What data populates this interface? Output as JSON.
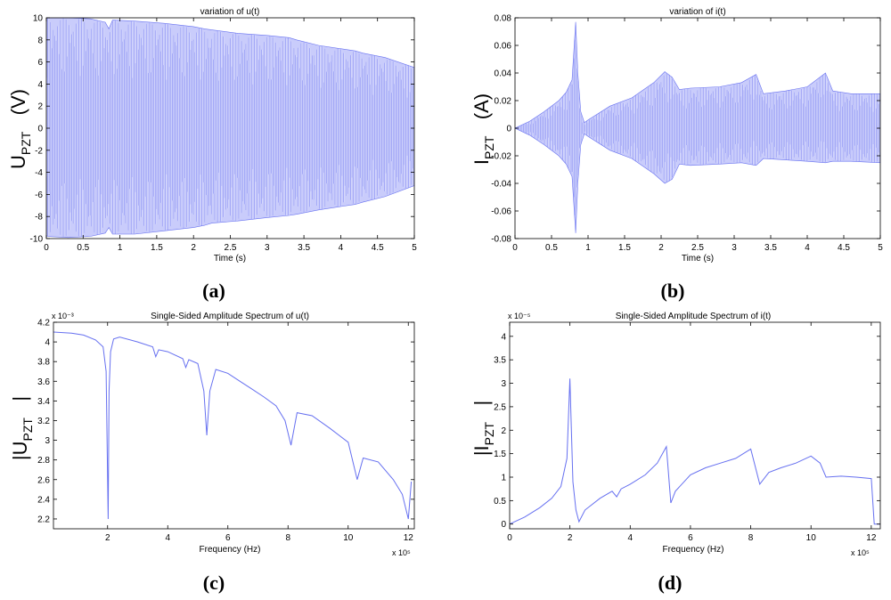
{
  "panels": [
    {
      "panel_label": "(a)",
      "title": "variation of u(t)",
      "xlabel": "Time (s)",
      "ylabel_main": "U",
      "ylabel_sub": "PZT",
      "ylabel_unit": "(V)",
      "x_multiplier": "",
      "y_multiplier": "",
      "xticks": [
        "0",
        "0.5",
        "1",
        "1.5",
        "2",
        "2.5",
        "3",
        "3.5",
        "4",
        "4.5",
        "5"
      ],
      "yticks": [
        "-10",
        "-8",
        "-6",
        "-4",
        "-2",
        "0",
        "2",
        "4",
        "6",
        "8",
        "10"
      ]
    },
    {
      "panel_label": "(b)",
      "title": "variation of i(t)",
      "xlabel": "Time (s)",
      "ylabel_main": "I",
      "ylabel_sub": "PZT",
      "ylabel_unit": "(A)",
      "x_multiplier": "",
      "y_multiplier": "",
      "xticks": [
        "0",
        "0.5",
        "1",
        "1.5",
        "2",
        "2.5",
        "3",
        "3.5",
        "4",
        "4.5",
        "5"
      ],
      "yticks": [
        "-0.08",
        "-0.06",
        "-0.04",
        "-0.02",
        "0",
        "0.02",
        "0.04",
        "0.06",
        "0.08"
      ]
    },
    {
      "panel_label": "(c)",
      "title": "Single-Sided Amplitude Spectrum of u(t)",
      "xlabel": "Frequency (Hz)",
      "ylabel_main": "|U",
      "ylabel_sub": "PZT",
      "ylabel_unit": "|",
      "x_multiplier": "x 10⁵",
      "y_multiplier": "x 10⁻³",
      "xticks": [
        "2",
        "4",
        "6",
        "8",
        "10",
        "12"
      ],
      "yticks": [
        "2.2",
        "2.4",
        "2.6",
        "2.8",
        "3",
        "3.2",
        "3.4",
        "3.6",
        "3.8",
        "4",
        "4.2"
      ]
    },
    {
      "panel_label": "(d)",
      "title": "Single-Sided Amplitude Spectrum of i(t)",
      "xlabel": "Frequency (Hz)",
      "ylabel_main": "|I",
      "ylabel_sub": "PZT",
      "ylabel_unit": "|",
      "x_multiplier": "x 10⁵",
      "y_multiplier": "x 10⁻⁵",
      "xticks": [
        "0",
        "2",
        "4",
        "6",
        "8",
        "10",
        "12"
      ],
      "yticks": [
        "0",
        "0.5",
        "1",
        "1.5",
        "2",
        "2.5",
        "3",
        "3.5",
        "4"
      ]
    }
  ],
  "colors": {
    "trace": "#6670f0",
    "fill": "#c9ccfb",
    "axis": "#000000"
  },
  "chart_data": [
    {
      "type": "area",
      "title": "variation of u(t)",
      "xlabel": "Time (s)",
      "ylabel": "U_PZT (V)",
      "xlim": [
        0,
        5
      ],
      "ylim": [
        -10,
        10
      ],
      "grid": false,
      "description_type": "envelope",
      "x": [
        0,
        0.3,
        0.6,
        0.8,
        0.85,
        0.9,
        1.2,
        1.6,
        2.0,
        2.15,
        2.25,
        2.6,
        3.0,
        3.3,
        3.4,
        3.7,
        4.0,
        4.2,
        4.3,
        4.6,
        5.0
      ],
      "upper": [
        10,
        10,
        9.9,
        9.6,
        9.0,
        9.8,
        9.7,
        9.5,
        9.2,
        9.0,
        8.9,
        8.6,
        8.4,
        8.2,
        8.0,
        7.5,
        7.2,
        7.0,
        6.8,
        6.4,
        5.5
      ],
      "lower": [
        -9.8,
        -9.9,
        -9.8,
        -9.5,
        -9.0,
        -9.6,
        -9.6,
        -9.3,
        -9.0,
        -8.8,
        -8.6,
        -8.4,
        -8.1,
        -7.9,
        -7.8,
        -7.4,
        -7.1,
        -6.9,
        -6.7,
        -6.2,
        -5.2
      ]
    },
    {
      "type": "area",
      "title": "variation of i(t)",
      "xlabel": "Time (s)",
      "ylabel": "I_PZT (A)",
      "xlim": [
        0,
        5
      ],
      "ylim": [
        -0.08,
        0.08
      ],
      "grid": false,
      "description_type": "envelope",
      "x": [
        0,
        0.2,
        0.4,
        0.6,
        0.7,
        0.78,
        0.83,
        0.86,
        0.9,
        0.95,
        1.0,
        1.3,
        1.6,
        1.9,
        2.05,
        2.15,
        2.25,
        2.4,
        2.8,
        3.1,
        3.3,
        3.4,
        3.7,
        4.0,
        4.25,
        4.35,
        4.6,
        5.0
      ],
      "upper": [
        0.0,
        0.005,
        0.012,
        0.02,
        0.026,
        0.035,
        0.077,
        0.04,
        0.012,
        0.004,
        0.006,
        0.016,
        0.022,
        0.033,
        0.041,
        0.037,
        0.028,
        0.029,
        0.03,
        0.033,
        0.039,
        0.025,
        0.027,
        0.03,
        0.04,
        0.027,
        0.025,
        0.025
      ],
      "lower": [
        0.0,
        -0.005,
        -0.012,
        -0.02,
        -0.026,
        -0.035,
        -0.076,
        -0.04,
        -0.012,
        -0.004,
        -0.006,
        -0.016,
        -0.022,
        -0.033,
        -0.04,
        -0.037,
        -0.026,
        -0.027,
        -0.026,
        -0.025,
        -0.027,
        -0.022,
        -0.023,
        -0.024,
        -0.025,
        -0.024,
        -0.024,
        -0.025
      ]
    },
    {
      "type": "line",
      "title": "Single-Sided Amplitude Spectrum of u(t)",
      "xlabel": "Frequency (Hz)",
      "ylabel": "|U_PZT|",
      "x_scale_label": "x 10^5",
      "y_scale_label": "x 10^-3",
      "xlim": [
        0.2,
        12.2
      ],
      "ylim": [
        2.1,
        4.2
      ],
      "grid": false,
      "x": [
        0.2,
        0.8,
        1.2,
        1.6,
        1.85,
        1.95,
        2.02,
        2.05,
        2.1,
        2.2,
        2.4,
        3.0,
        3.5,
        3.6,
        3.7,
        4.0,
        4.5,
        4.6,
        4.7,
        5.0,
        5.2,
        5.3,
        5.4,
        5.6,
        6.0,
        6.4,
        6.8,
        7.2,
        7.6,
        7.9,
        8.1,
        8.3,
        8.8,
        9.4,
        10.0,
        10.3,
        10.5,
        11.0,
        11.5,
        11.8,
        12.0,
        12.1
      ],
      "values": [
        4.1,
        4.09,
        4.07,
        4.02,
        3.95,
        3.7,
        2.2,
        3.5,
        3.9,
        4.03,
        4.05,
        4.0,
        3.95,
        3.85,
        3.92,
        3.9,
        3.83,
        3.74,
        3.82,
        3.78,
        3.5,
        3.05,
        3.5,
        3.72,
        3.68,
        3.6,
        3.52,
        3.44,
        3.35,
        3.2,
        2.95,
        3.28,
        3.25,
        3.12,
        2.98,
        2.6,
        2.82,
        2.78,
        2.6,
        2.45,
        2.2,
        2.58
      ]
    },
    {
      "type": "line",
      "title": "Single-Sided Amplitude Spectrum of i(t)",
      "xlabel": "Frequency (Hz)",
      "ylabel": "|I_PZT|",
      "x_scale_label": "x 10^5",
      "y_scale_label": "x 10^-5",
      "xlim": [
        0,
        12.3
      ],
      "ylim": [
        -0.1,
        4.3
      ],
      "grid": false,
      "x": [
        0,
        0.5,
        1.0,
        1.4,
        1.7,
        1.9,
        2.0,
        2.05,
        2.1,
        2.2,
        2.3,
        2.5,
        3.0,
        3.4,
        3.55,
        3.7,
        4.0,
        4.5,
        4.9,
        5.2,
        5.35,
        5.5,
        6.0,
        6.5,
        7.0,
        7.5,
        8.0,
        8.3,
        8.6,
        9.0,
        9.5,
        10.0,
        10.3,
        10.5,
        11.0,
        11.5,
        12.0,
        12.1,
        12.3
      ],
      "values": [
        0.0,
        0.15,
        0.35,
        0.55,
        0.8,
        1.4,
        3.1,
        2.0,
        0.9,
        0.3,
        0.05,
        0.3,
        0.55,
        0.7,
        0.58,
        0.75,
        0.85,
        1.05,
        1.3,
        1.65,
        0.45,
        0.7,
        1.05,
        1.2,
        1.3,
        1.4,
        1.6,
        0.85,
        1.1,
        1.2,
        1.3,
        1.45,
        1.3,
        1.0,
        1.02,
        1.0,
        0.97,
        0.0,
        0.0
      ]
    }
  ]
}
